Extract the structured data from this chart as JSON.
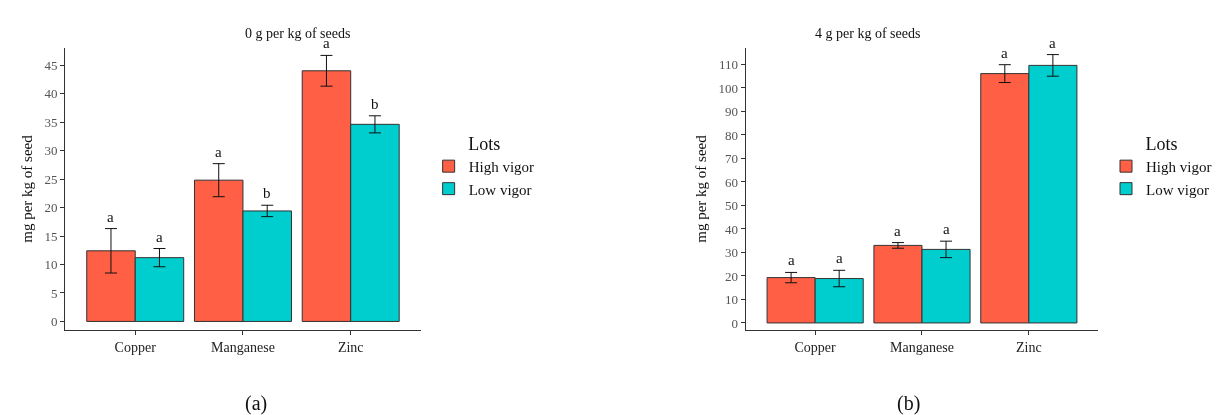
{
  "chart_data": [
    {
      "type": "bar",
      "title": "0 g per kg of seeds",
      "ylabel": "mg per kg of seed",
      "legend_title": "Lots",
      "legend": "right",
      "categories": [
        "Copper",
        "Manganese",
        "Zinc"
      ],
      "series": [
        {
          "name": "High vigor",
          "color": "#ff5f45",
          "values": [
            12.4,
            24.8,
            44.0
          ],
          "errors": [
            3.9,
            2.9,
            2.7
          ]
        },
        {
          "name": "Low vigor",
          "color": "#00cdcd",
          "values": [
            11.2,
            19.4,
            34.6
          ],
          "errors": [
            1.6,
            1.0,
            1.5
          ]
        }
      ],
      "ylim": [
        -1.5,
        48
      ],
      "yticks": [
        0,
        5,
        10,
        15,
        20,
        25,
        30,
        35,
        40,
        45
      ],
      "annotations": [
        "a",
        "a",
        "a",
        "b",
        "a",
        "b",
        "(a)"
      ]
    },
    {
      "type": "bar",
      "title": "4 g per kg of seeds",
      "ylabel": "mg per kg of seed",
      "legend_title": "Lots",
      "legend": "right",
      "categories": [
        "Copper",
        "Manganese",
        "Zinc"
      ],
      "series": [
        {
          "name": "High vigor",
          "color": "#ff5f45",
          "values": [
            19.3,
            33.0,
            106.1
          ],
          "errors": [
            2.2,
            1.2,
            3.8
          ]
        },
        {
          "name": "Low vigor",
          "color": "#00cdcd",
          "values": [
            18.9,
            31.3,
            109.6
          ],
          "errors": [
            3.5,
            3.5,
            4.6
          ]
        }
      ],
      "ylim": [
        -3,
        117
      ],
      "yticks": [
        0,
        10,
        20,
        30,
        40,
        50,
        60,
        70,
        80,
        90,
        100,
        110
      ],
      "annotations": [
        "a",
        "a",
        "a",
        "a",
        "a",
        "a",
        "(b)"
      ]
    }
  ]
}
